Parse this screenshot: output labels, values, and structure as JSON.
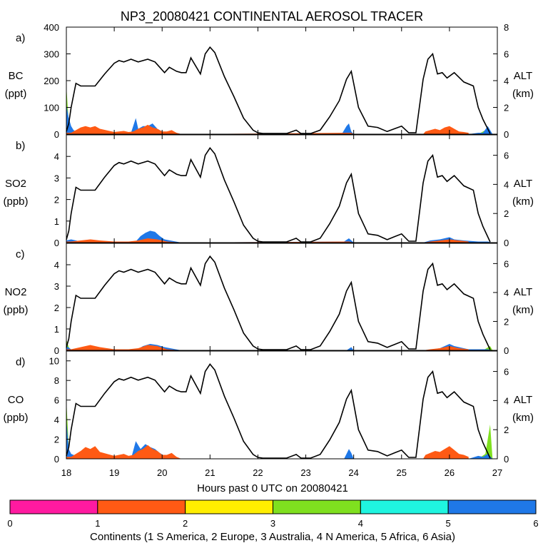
{
  "chart_data": {
    "type": "area",
    "title": "NP3_20080421 CONTINENTAL AEROSOL TRACER",
    "xlabel": "Hours past 0 UTC on 20080421",
    "xlim": [
      18,
      27
    ],
    "xticks": [
      "18",
      "19",
      "20",
      "21",
      "22",
      "23",
      "24",
      "25",
      "26",
      "27"
    ],
    "right_axis": {
      "label": "ALT",
      "unit": "(km)"
    },
    "colorbar": {
      "label": "Continents (1 S America, 2 Europe, 3 Australia, 4 N America, 5 Africa, 6 Asia)",
      "ticks": [
        "0",
        "1",
        "2",
        "3",
        "4",
        "5",
        "6"
      ],
      "colors": [
        "#ff1aa0",
        "#ff5a14",
        "#ffee00",
        "#7fe01f",
        "#1ff5e0",
        "#1f78e8"
      ]
    },
    "altitude_km": {
      "x": [
        18.0,
        18.05,
        18.1,
        18.2,
        18.3,
        18.6,
        18.8,
        19.0,
        19.1,
        19.2,
        19.35,
        19.5,
        19.7,
        19.85,
        19.95,
        20.05,
        20.15,
        20.3,
        20.4,
        20.5,
        20.6,
        20.8,
        20.9,
        21.0,
        21.1,
        21.3,
        21.5,
        21.7,
        21.9,
        22.0,
        22.1,
        22.5,
        22.6,
        22.8,
        22.9,
        23.1,
        23.3,
        23.5,
        23.7,
        23.85,
        23.95,
        24.1,
        24.3,
        24.5,
        24.7,
        24.85,
        25.0,
        25.15,
        25.3,
        25.45,
        25.55,
        25.65,
        25.75,
        25.85,
        25.95,
        26.1,
        26.3,
        26.5,
        26.6,
        26.7,
        26.85
      ],
      "y": [
        0.2,
        0.8,
        2.0,
        3.8,
        3.6,
        3.6,
        4.5,
        5.3,
        5.5,
        5.4,
        5.6,
        5.4,
        5.6,
        5.4,
        5.0,
        4.6,
        5.0,
        4.7,
        4.6,
        4.6,
        5.7,
        4.5,
        6.0,
        6.5,
        6.1,
        4.3,
        2.8,
        1.2,
        0.3,
        0.1,
        0.05,
        0.05,
        0.05,
        0.3,
        0.05,
        0.05,
        0.3,
        1.3,
        2.5,
        4.1,
        4.7,
        2.0,
        0.6,
        0.5,
        0.2,
        0.4,
        0.6,
        0.1,
        0.1,
        4.1,
        5.6,
        6.0,
        4.5,
        4.6,
        4.2,
        4.6,
        3.9,
        3.6,
        2.0,
        1.1,
        0.05
      ]
    },
    "panels": [
      {
        "letter": "a)",
        "species": "BC",
        "unit": "(ppt)",
        "ylim": [
          0,
          400
        ],
        "yticks": [
          0,
          100,
          200,
          300,
          400
        ],
        "alt_ticks": [
          0,
          2,
          4,
          6,
          8
        ],
        "alt_max": 8,
        "series": [
          {
            "name": "N America",
            "continent": 4,
            "x": [
              18.0,
              18.05,
              18.1,
              18.3,
              26.6,
              26.8,
              26.9
            ],
            "values": [
              180,
              40,
              0,
              0,
              0,
              20,
              0
            ]
          },
          {
            "name": "Asia",
            "continent": 6,
            "x": [
              18.0,
              18.05,
              18.1,
              18.15,
              18.25,
              19.35,
              19.45,
              19.5,
              19.6,
              19.7,
              19.8,
              19.9,
              20.0,
              20.3,
              20.4,
              23.75,
              23.85,
              23.9,
              23.95,
              24.0,
              25.9,
              26.0,
              26.1,
              26.4,
              26.6,
              26.7,
              26.8,
              26.9
            ],
            "values": [
              110,
              60,
              30,
              15,
              5,
              5,
              60,
              20,
              30,
              30,
              40,
              20,
              10,
              5,
              0,
              0,
              30,
              40,
              10,
              0,
              0,
              10,
              10,
              0,
              5,
              5,
              30,
              0
            ]
          },
          {
            "name": "Europe",
            "continent": 2,
            "x": [
              18.0,
              18.1,
              18.2,
              18.3,
              18.4,
              18.5,
              18.6,
              18.7,
              19.0,
              19.2,
              19.3,
              19.4,
              19.5,
              19.6,
              19.7,
              19.8,
              19.9,
              20.0,
              20.1,
              20.2,
              20.3,
              20.4,
              23.85,
              23.95,
              24.0,
              25.45,
              25.5,
              25.6,
              25.7,
              25.8,
              25.9,
              26.0,
              26.1,
              26.2,
              26.3,
              26.4
            ],
            "values": [
              5,
              5,
              15,
              25,
              30,
              25,
              30,
              20,
              8,
              12,
              8,
              10,
              20,
              25,
              35,
              25,
              20,
              10,
              10,
              15,
              5,
              0,
              5,
              5,
              0,
              0,
              10,
              15,
              20,
              15,
              25,
              30,
              20,
              10,
              8,
              5
            ]
          }
        ]
      },
      {
        "letter": "b)",
        "species": "SO2",
        "unit": "(ppb)",
        "ylim": [
          0,
          5
        ],
        "yticks": [
          0,
          1,
          2,
          3,
          4
        ],
        "alt_ticks": [
          0,
          2,
          4,
          6
        ],
        "alt_max": 7.4,
        "series": [
          {
            "name": "Asia",
            "continent": 6,
            "x": [
              18.0,
              18.1,
              18.3,
              19.45,
              19.55,
              19.65,
              19.75,
              19.85,
              19.95,
              20.05,
              20.4,
              23.8,
              23.9,
              24.0,
              25.45,
              25.6,
              25.8,
              26.0,
              26.1,
              26.3,
              26.6,
              26.8,
              26.9
            ],
            "values": [
              0.1,
              0.15,
              0.05,
              0.05,
              0.3,
              0.45,
              0.55,
              0.5,
              0.3,
              0.15,
              0.0,
              0.05,
              0.2,
              0.0,
              0.0,
              0.1,
              0.15,
              0.25,
              0.15,
              0.1,
              0.05,
              0.05,
              0.0
            ]
          },
          {
            "name": "Europe",
            "continent": 2,
            "x": [
              18.0,
              18.1,
              18.3,
              18.5,
              18.7,
              19.0,
              19.3,
              19.5,
              19.7,
              19.9,
              20.1,
              20.4,
              23.9,
              24.0,
              25.45,
              25.6,
              25.8,
              26.0,
              26.2,
              26.4
            ],
            "values": [
              0.05,
              0.05,
              0.1,
              0.15,
              0.1,
              0.05,
              0.05,
              0.1,
              0.2,
              0.15,
              0.05,
              0.0,
              0.05,
              0.0,
              0.0,
              0.05,
              0.1,
              0.15,
              0.1,
              0.05
            ]
          }
        ]
      },
      {
        "letter": "c)",
        "species": "NO2",
        "unit": "(ppb)",
        "ylim": [
          0,
          5
        ],
        "yticks": [
          0,
          1,
          2,
          3,
          4
        ],
        "alt_ticks": [
          0,
          2,
          4,
          6
        ],
        "alt_max": 7.4,
        "series": [
          {
            "name": "N America",
            "continent": 4,
            "x": [
              18.0,
              18.05,
              18.1,
              26.7,
              26.85,
              26.9
            ],
            "values": [
              0.5,
              0.15,
              0.0,
              0.0,
              0.2,
              0.0
            ]
          },
          {
            "name": "Asia",
            "continent": 6,
            "x": [
              18.0,
              18.1,
              18.3,
              19.45,
              19.6,
              19.75,
              19.9,
              20.05,
              20.4,
              23.85,
              23.95,
              24.0,
              25.5,
              25.8,
              26.0,
              26.1,
              26.4,
              26.8,
              26.9
            ],
            "values": [
              0.2,
              0.05,
              0.0,
              0.0,
              0.2,
              0.3,
              0.25,
              0.15,
              0.0,
              0.0,
              0.15,
              0.0,
              0.0,
              0.1,
              0.3,
              0.2,
              0.05,
              0.05,
              0.0
            ]
          },
          {
            "name": "Europe",
            "continent": 2,
            "x": [
              18.0,
              18.1,
              18.3,
              18.5,
              18.7,
              19.0,
              19.3,
              19.5,
              19.7,
              19.9,
              20.1,
              20.4,
              25.45,
              25.6,
              25.8,
              26.0,
              26.2,
              26.4
            ],
            "values": [
              0.05,
              0.05,
              0.15,
              0.25,
              0.15,
              0.05,
              0.05,
              0.1,
              0.25,
              0.2,
              0.05,
              0.0,
              0.0,
              0.05,
              0.1,
              0.2,
              0.1,
              0.05
            ]
          }
        ]
      },
      {
        "letter": "d)",
        "species": "CO",
        "unit": "(ppb)",
        "ylim": [
          0,
          11
        ],
        "yticks": [
          0,
          2,
          4,
          6,
          8,
          10
        ],
        "alt_ticks": [
          0,
          2,
          4,
          6
        ],
        "alt_max": 7.4,
        "series": [
          {
            "name": "N America",
            "continent": 4,
            "x": [
              18.0,
              18.05,
              18.1,
              18.3,
              26.6,
              26.75,
              26.85,
              26.9
            ],
            "values": [
              6.0,
              1.0,
              0.2,
              0.0,
              0.0,
              0.5,
              3.5,
              0.0
            ]
          },
          {
            "name": "Asia",
            "continent": 6,
            "x": [
              18.0,
              18.05,
              18.1,
              18.2,
              18.3,
              19.35,
              19.45,
              19.55,
              19.65,
              19.75,
              19.85,
              19.95,
              20.05,
              20.4,
              23.8,
              23.9,
              23.95,
              24.0,
              25.9,
              26.0,
              26.1,
              26.4,
              26.6,
              26.7,
              26.8,
              26.9
            ],
            "values": [
              4.0,
              1.0,
              0.5,
              0.3,
              0.1,
              0.0,
              1.8,
              1.0,
              1.5,
              1.2,
              1.0,
              0.6,
              0.3,
              0.0,
              0.0,
              1.0,
              0.6,
              0.0,
              0.0,
              0.3,
              0.3,
              0.0,
              0.3,
              0.2,
              0.5,
              0.0
            ]
          },
          {
            "name": "Europe",
            "continent": 2,
            "x": [
              18.0,
              18.1,
              18.2,
              18.3,
              18.4,
              18.5,
              18.6,
              18.7,
              19.0,
              19.2,
              19.3,
              19.4,
              19.5,
              19.6,
              19.7,
              19.8,
              19.9,
              20.0,
              20.1,
              20.2,
              20.3,
              20.4,
              25.45,
              25.5,
              25.6,
              25.7,
              25.8,
              25.9,
              26.0,
              26.1,
              26.2,
              26.3,
              26.4
            ],
            "values": [
              0.2,
              0.2,
              0.5,
              0.8,
              1.2,
              1.0,
              1.3,
              0.7,
              0.3,
              0.5,
              0.3,
              0.4,
              0.8,
              1.0,
              1.4,
              1.0,
              0.8,
              0.4,
              0.4,
              0.6,
              0.2,
              0.0,
              0.0,
              0.4,
              0.6,
              0.8,
              0.7,
              1.0,
              1.3,
              0.9,
              0.5,
              0.4,
              0.2
            ]
          }
        ]
      }
    ]
  }
}
